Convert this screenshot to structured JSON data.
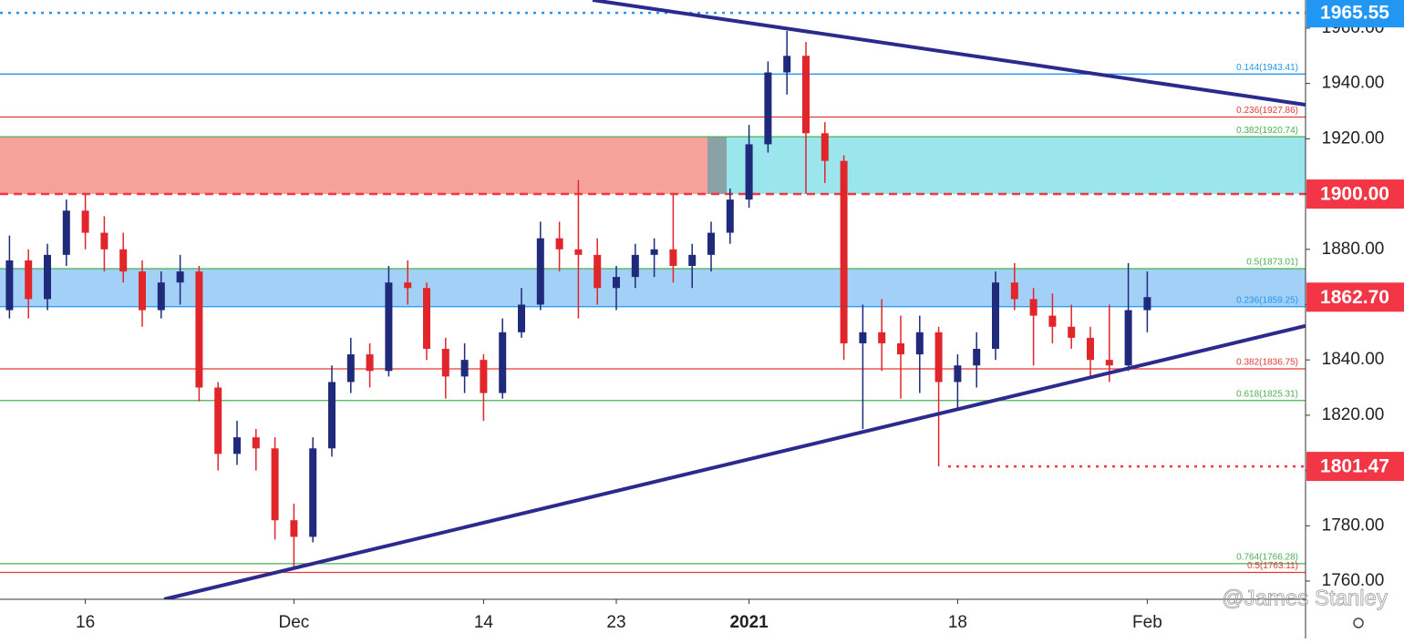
{
  "chart_data": {
    "type": "candlestick",
    "categories": [
      null,
      null,
      null,
      null,
      "16",
      null,
      null,
      null,
      null,
      null,
      null,
      null,
      null,
      null,
      null,
      "Dec",
      null,
      null,
      null,
      null,
      null,
      null,
      null,
      null,
      null,
      "14",
      null,
      null,
      null,
      null,
      null,
      null,
      "23",
      null,
      null,
      null,
      null,
      null,
      null,
      "2021",
      null,
      null,
      null,
      null,
      null,
      null,
      null,
      null,
      null,
      null,
      "18",
      null,
      null,
      null,
      null,
      null,
      null,
      null,
      null,
      null,
      "Feb"
    ],
    "open": [
      1858,
      1876,
      1862,
      1878,
      1894,
      1886,
      1880,
      1872,
      1858,
      1868,
      1872,
      1830,
      1806,
      1812,
      1808,
      1782,
      1776,
      1808,
      1832,
      1842,
      1836,
      1868,
      1866,
      1844,
      1834,
      1840,
      1828,
      1850,
      1860,
      1884,
      1880,
      1878,
      1866,
      1870,
      1878,
      1880,
      1874,
      1878,
      1886,
      1898,
      1918,
      1944,
      1950,
      1922,
      1912,
      1846,
      1850,
      1846,
      1842,
      1850,
      1832,
      1838,
      1844,
      1868,
      1862,
      1856,
      1852,
      1848,
      1840,
      1838,
      1858
    ],
    "high": [
      1885,
      1880,
      1882,
      1898,
      1900,
      1892,
      1886,
      1876,
      1872,
      1878,
      1874,
      1832,
      1818,
      1815,
      1812,
      1788,
      1812,
      1838,
      1848,
      1846,
      1874,
      1876,
      1868,
      1848,
      1846,
      1842,
      1855,
      1866,
      1890,
      1890,
      1905,
      1884,
      1874,
      1882,
      1884,
      1900,
      1882,
      1890,
      1902,
      1925,
      1948,
      1959,
      1955,
      1926,
      1914,
      1860,
      1862,
      1856,
      1856,
      1852,
      1842,
      1850,
      1872,
      1875,
      1866,
      1864,
      1860,
      1852,
      1860,
      1875,
      1872
    ],
    "low": [
      1855,
      1855,
      1858,
      1874,
      1880,
      1872,
      1868,
      1852,
      1855,
      1860,
      1825,
      1800,
      1802,
      1800,
      1775,
      1765,
      1774,
      1805,
      1828,
      1830,
      1834,
      1860,
      1840,
      1826,
      1828,
      1818,
      1826,
      1848,
      1858,
      1872,
      1855,
      1860,
      1858,
      1866,
      1870,
      1868,
      1866,
      1872,
      1882,
      1895,
      1915,
      1936,
      1900,
      1904,
      1840,
      1815,
      1836,
      1826,
      1828,
      1801.47,
      1822,
      1830,
      1840,
      1858,
      1838,
      1846,
      1844,
      1834,
      1832,
      1836,
      1850
    ],
    "close": [
      1876,
      1862,
      1878,
      1894,
      1886,
      1880,
      1872,
      1858,
      1868,
      1872,
      1830,
      1806,
      1812,
      1808,
      1782,
      1776,
      1808,
      1832,
      1842,
      1836,
      1868,
      1866,
      1844,
      1834,
      1840,
      1828,
      1850,
      1860,
      1884,
      1880,
      1878,
      1866,
      1870,
      1878,
      1880,
      1874,
      1878,
      1886,
      1898,
      1918,
      1944,
      1950,
      1922,
      1912,
      1846,
      1850,
      1846,
      1842,
      1850,
      1832,
      1838,
      1844,
      1868,
      1862,
      1856,
      1852,
      1848,
      1840,
      1838,
      1858,
      1862.7
    ],
    "up_color": "#1f2a7a",
    "down_color": "#e0252b",
    "ylim": [
      1753.4,
      1970.2
    ],
    "yticks": [
      {
        "value": 1760,
        "label": "1760.00"
      },
      {
        "value": 1780,
        "label": "1780.00"
      },
      {
        "value": 1800,
        "label": "1800.00"
      },
      {
        "value": 1820,
        "label": "1820.00"
      },
      {
        "value": 1840,
        "label": "1840.00"
      },
      {
        "value": 1860,
        "label": "1860.00"
      },
      {
        "value": 1880,
        "label": "1880.00"
      },
      {
        "value": 1900,
        "label": "1900.00"
      },
      {
        "value": 1920,
        "label": "1920.00"
      },
      {
        "value": 1940,
        "label": "1940.00"
      },
      {
        "value": 1960,
        "label": "1960.00"
      }
    ],
    "zones": [
      {
        "from": 1900,
        "to": 1920.74,
        "color": "#f7a19b"
      },
      {
        "from": 1900,
        "to": 1920.74,
        "color": "#93e3eb"
      },
      {
        "from": 1859.25,
        "to": 1873.01,
        "color": "#a3d0f7"
      }
    ],
    "levels": [
      {
        "value": 1943.41,
        "label": "0.144(1943.41)",
        "color": "#2196f3"
      },
      {
        "value": 1927.86,
        "label": "0.236(1927.86)",
        "color": "#e53935"
      },
      {
        "value": 1920.74,
        "label": "0.382(1920.74)",
        "color": "#4caf50"
      },
      {
        "value": 1873.01,
        "label": "0.5(1873.01)",
        "color": "#4caf50"
      },
      {
        "value": 1859.25,
        "label": "0.236(1859.25)",
        "color": "#2196f3"
      },
      {
        "value": 1836.75,
        "label": "0.382(1836.75)",
        "color": "#e53935"
      },
      {
        "value": 1825.31,
        "label": "0.618(1825.31)",
        "color": "#4caf50"
      },
      {
        "value": 1766.28,
        "label": "0.764(1766.28)",
        "color": "#4caf50"
      },
      {
        "value": 1763.11,
        "label": "0.5(1763.11)",
        "color": "#e53935"
      }
    ],
    "trend_lines": [
      {
        "from": 1970.2,
        "to": 1932.3,
        "color": "#2d2a8e"
      },
      {
        "from": 1753.4,
        "to": 1852.3,
        "color": "#2d2a8e"
      }
    ],
    "price_badges": [
      {
        "value": 1965.55,
        "label": "1965.55",
        "color": "#2196f3",
        "line": "dotted"
      },
      {
        "value": 1900,
        "label": "1900.00",
        "color": "#f23645",
        "line": "dashed"
      },
      {
        "value": 1862.7,
        "label": "1862.70",
        "color": "#f23645",
        "line": "none"
      },
      {
        "value": 1801.47,
        "label": "1801.47",
        "color": "#f23645",
        "line": "dotted"
      }
    ],
    "watermark": "@James Stanley"
  }
}
